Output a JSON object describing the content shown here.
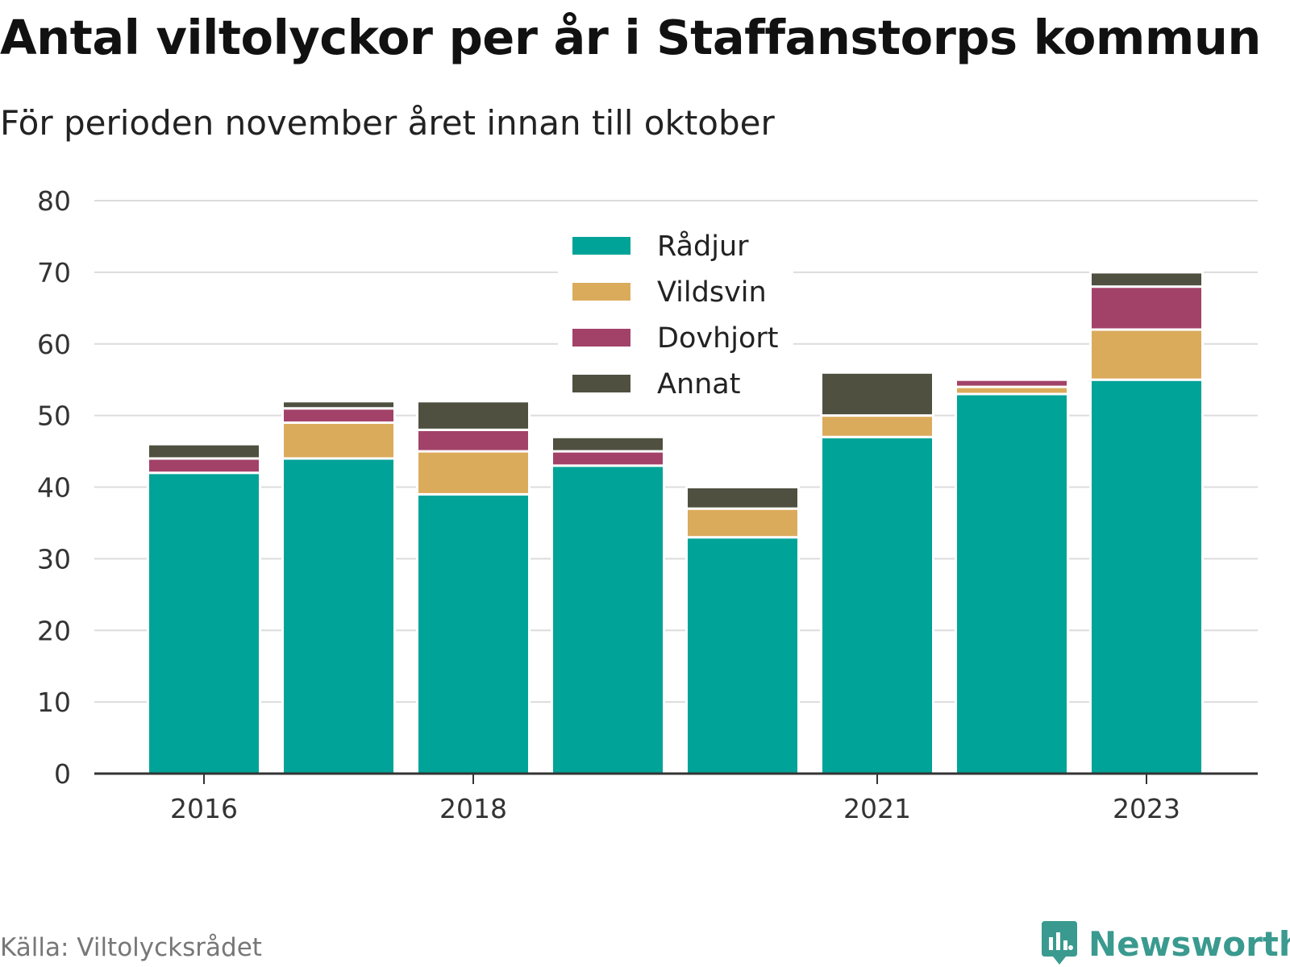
{
  "header": {
    "title": "Antal viltolyckor per år i Staffanstorps kommun",
    "subtitle": "För perioden november året innan till oktober"
  },
  "footer": {
    "source": "Källa: Viltolycksrådet",
    "brand": "Newsworthy",
    "brand_icon": "newsworthy-logo-icon"
  },
  "chart_data": {
    "type": "bar",
    "stacked": true,
    "categories": [
      "2016",
      "2017",
      "2018",
      "2019",
      "2020",
      "2021",
      "2022",
      "2023"
    ],
    "x_tick_labels": [
      "2016",
      "2018",
      "2021",
      "2023"
    ],
    "series": [
      {
        "name": "Rådjur",
        "color": "#00a398",
        "values": [
          42,
          44,
          39,
          43,
          33,
          47,
          53,
          55
        ]
      },
      {
        "name": "Vildsvin",
        "color": "#dbab5c",
        "values": [
          0,
          5,
          6,
          0,
          4,
          3,
          1,
          7
        ]
      },
      {
        "name": "Dovhjort",
        "color": "#a34268",
        "values": [
          2,
          2,
          3,
          2,
          0,
          0,
          1,
          6
        ]
      },
      {
        "name": "Annat",
        "color": "#4f5040",
        "values": [
          2,
          1,
          4,
          2,
          3,
          6,
          0,
          2
        ]
      }
    ],
    "ylim": [
      0,
      80
    ],
    "y_ticks": [
      "0",
      "10",
      "20",
      "30",
      "40",
      "50",
      "60",
      "70",
      "80"
    ],
    "grid": true,
    "legend_position": "top-center"
  }
}
